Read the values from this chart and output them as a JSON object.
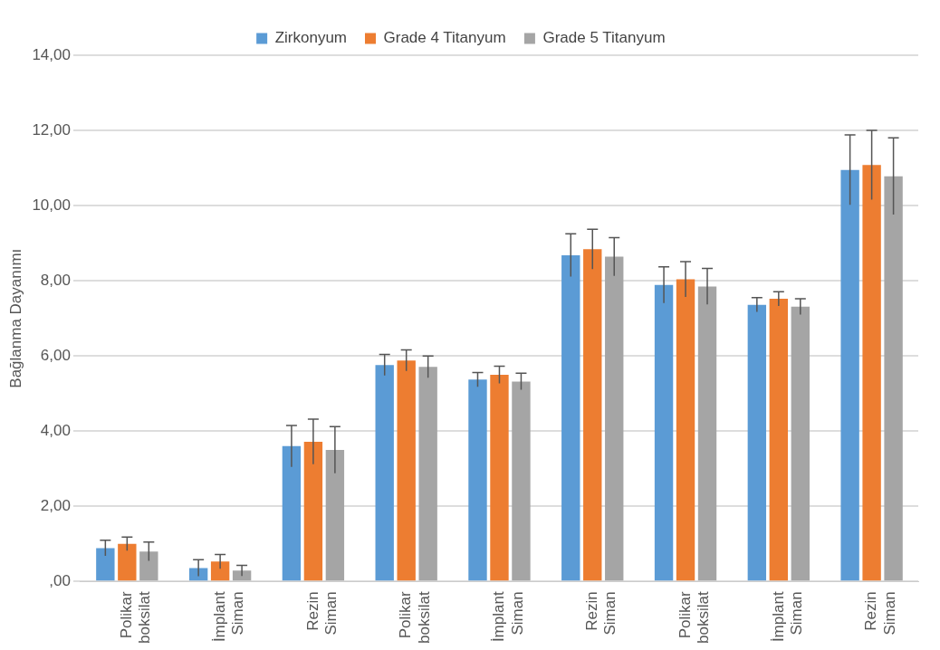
{
  "chart_data": {
    "type": "bar",
    "ylabel": "Bağlanma Dayanımı",
    "categories": [
      "Polikar boksilat",
      "İmplant Siman",
      "Rezin Siman",
      "Polikar boksilat",
      "İmplant Siman",
      "Rezin Siman",
      "Polikar boksilat",
      "İmplant Siman",
      "Rezin Siman"
    ],
    "series": [
      {
        "name": "Zirkonyum",
        "color": "#5b9bd5",
        "values": [
          0.89,
          0.36,
          3.6,
          5.76,
          5.37,
          8.68,
          7.89,
          7.36,
          10.95
        ],
        "errors": [
          0.21,
          0.22,
          0.55,
          0.28,
          0.19,
          0.57,
          0.48,
          0.19,
          0.93
        ]
      },
      {
        "name": "Grade 4 Titanyum",
        "color": "#ed7d31",
        "values": [
          1.0,
          0.53,
          3.72,
          5.88,
          5.5,
          8.84,
          8.04,
          7.52,
          11.08
        ],
        "errors": [
          0.18,
          0.19,
          0.6,
          0.28,
          0.23,
          0.53,
          0.47,
          0.19,
          0.92
        ]
      },
      {
        "name": "Grade 5 Titanyum",
        "color": "#a5a5a5",
        "values": [
          0.8,
          0.29,
          3.5,
          5.71,
          5.32,
          8.64,
          7.85,
          7.31,
          10.78
        ],
        "errors": [
          0.25,
          0.14,
          0.62,
          0.29,
          0.22,
          0.51,
          0.48,
          0.21,
          1.02
        ]
      }
    ],
    "ylim": [
      0,
      14
    ],
    "yticks": [
      {
        "value": 0,
        "label": ",00"
      },
      {
        "value": 2,
        "label": "2,00"
      },
      {
        "value": 4,
        "label": "4,00"
      },
      {
        "value": 6,
        "label": "6,00"
      },
      {
        "value": 8,
        "label": "8,00"
      },
      {
        "value": 10,
        "label": "10,00"
      },
      {
        "value": 12,
        "label": "12,00"
      },
      {
        "value": 14,
        "label": "14,00"
      }
    ],
    "grid": "y",
    "legend": "top"
  }
}
